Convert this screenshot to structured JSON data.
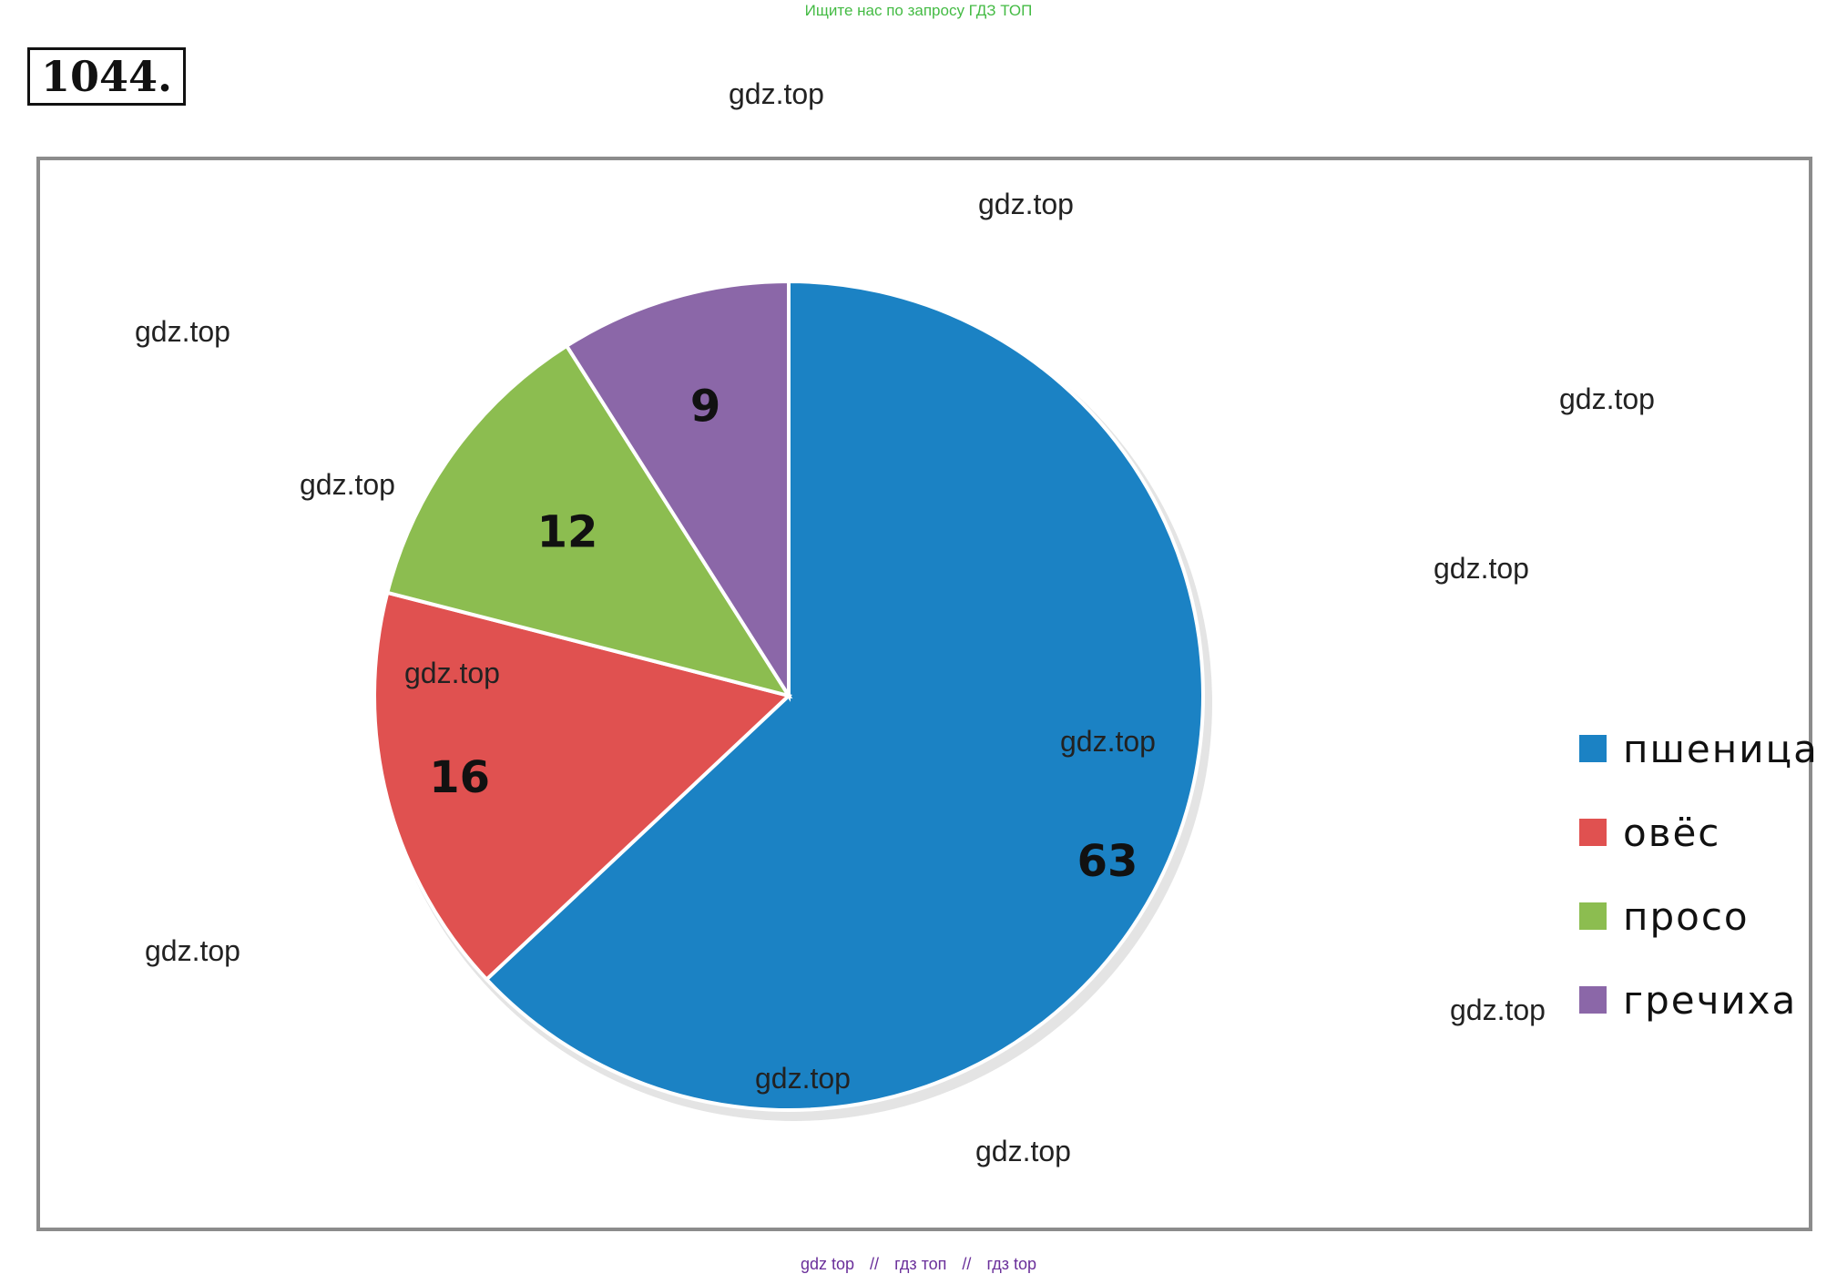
{
  "header": {
    "banner_text": "Ищите нас по запросу ГДЗ ТОП",
    "problem_number": "1044."
  },
  "watermarks": [
    "gdz.top",
    "gdz.top",
    "gdz.top",
    "gdz.top",
    "gdz.top",
    "gdz.top",
    "gdz.top",
    "gdz.top",
    "gdz.top",
    "gdz.top",
    "gdz.top",
    "gdz.top",
    "gdz.top"
  ],
  "footer": {
    "parts": [
      "gdz top",
      "//",
      "гдз топ",
      "//",
      "гдз top"
    ]
  },
  "chart_data": {
    "type": "pie",
    "title": "",
    "categories": [
      "пшеница",
      "овёс",
      "просо",
      "гречиха"
    ],
    "values": [
      63,
      16,
      12,
      9
    ],
    "colors": [
      "#1b82c4",
      "#e05150",
      "#8cbd50",
      "#8b67a8"
    ],
    "legend": "right",
    "start_angle_deg": 0,
    "direction": "clockwise"
  }
}
